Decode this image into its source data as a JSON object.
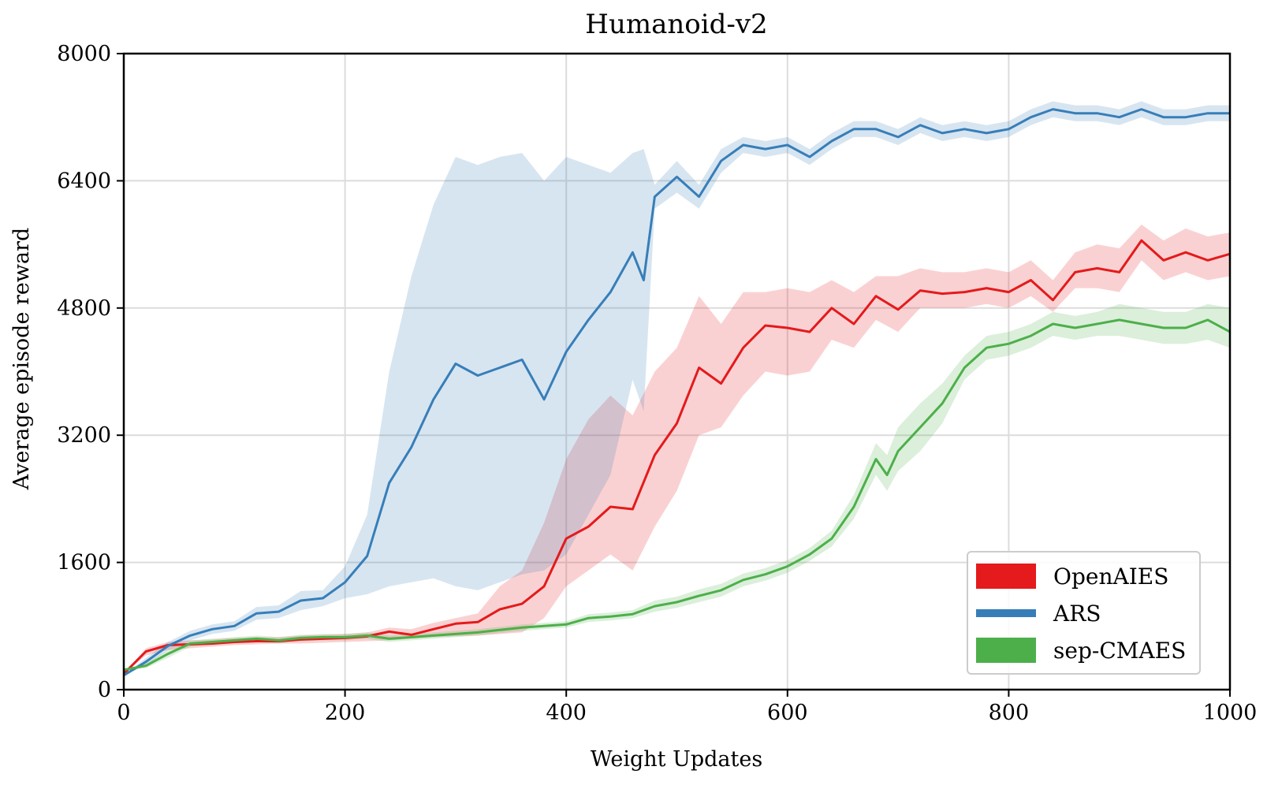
{
  "chart_data": {
    "type": "line",
    "title": "Humanoid-v2",
    "xlabel": "Weight Updates",
    "ylabel": "Average episode reward",
    "xlim": [
      0,
      1000
    ],
    "ylim": [
      0,
      8000
    ],
    "xticks": [
      0,
      200,
      400,
      600,
      800,
      1000
    ],
    "yticks": [
      0,
      1600,
      3200,
      4800,
      6400,
      8000
    ],
    "grid": true,
    "legend_position": "lower-right",
    "series": [
      {
        "name": "OpenAIES",
        "color": "#e41a1c",
        "x": [
          0,
          20,
          40,
          60,
          80,
          100,
          120,
          140,
          160,
          180,
          200,
          220,
          240,
          260,
          280,
          300,
          320,
          340,
          360,
          380,
          400,
          420,
          440,
          460,
          480,
          500,
          520,
          540,
          560,
          580,
          600,
          620,
          640,
          660,
          680,
          700,
          720,
          740,
          760,
          780,
          800,
          820,
          840,
          860,
          880,
          900,
          920,
          940,
          960,
          980,
          1000
        ],
        "y": [
          200,
          480,
          560,
          570,
          580,
          600,
          610,
          610,
          630,
          640,
          650,
          670,
          730,
          690,
          760,
          830,
          850,
          1010,
          1080,
          1300,
          1900,
          2050,
          2300,
          2270,
          2950,
          3350,
          4050,
          3850,
          4300,
          4580,
          4550,
          4500,
          4800,
          4600,
          4950,
          4780,
          5020,
          4980,
          5000,
          5050,
          5000,
          5150,
          4900,
          5250,
          5300,
          5250,
          5650,
          5400,
          5500,
          5400,
          5480
        ],
        "lower": [
          200,
          430,
          500,
          520,
          540,
          560,
          570,
          580,
          580,
          590,
          600,
          610,
          620,
          640,
          660,
          670,
          680,
          700,
          720,
          900,
          1300,
          1500,
          1700,
          1500,
          2050,
          2500,
          3200,
          3300,
          3700,
          4000,
          3950,
          4000,
          4400,
          4300,
          4650,
          4500,
          4800,
          4800,
          4800,
          4850,
          4800,
          4950,
          4750,
          5050,
          5050,
          5000,
          5400,
          5150,
          5250,
          5150,
          5200
        ],
        "upper": [
          200,
          520,
          600,
          620,
          630,
          650,
          660,
          660,
          680,
          690,
          700,
          720,
          780,
          760,
          840,
          900,
          960,
          1300,
          1500,
          2100,
          2900,
          3400,
          3700,
          3450,
          4000,
          4300,
          4950,
          4600,
          5000,
          5000,
          5050,
          5000,
          5150,
          5000,
          5200,
          5200,
          5300,
          5250,
          5250,
          5300,
          5250,
          5400,
          5150,
          5500,
          5600,
          5550,
          5850,
          5650,
          5800,
          5700,
          5750
        ]
      },
      {
        "name": "ARS",
        "color": "#377eb8",
        "x": [
          0,
          20,
          40,
          60,
          80,
          100,
          120,
          140,
          160,
          180,
          200,
          220,
          240,
          260,
          280,
          300,
          320,
          340,
          360,
          380,
          400,
          420,
          440,
          460,
          470,
          480,
          500,
          520,
          540,
          560,
          580,
          600,
          620,
          640,
          660,
          680,
          700,
          720,
          740,
          760,
          780,
          800,
          820,
          840,
          860,
          880,
          900,
          920,
          940,
          960,
          980,
          1000
        ],
        "y": [
          180,
          350,
          550,
          680,
          760,
          800,
          960,
          980,
          1120,
          1150,
          1350,
          1680,
          2600,
          3050,
          3650,
          4100,
          3950,
          4050,
          4150,
          3650,
          4250,
          4650,
          5000,
          5500,
          5150,
          6200,
          6450,
          6200,
          6650,
          6850,
          6800,
          6850,
          6700,
          6900,
          7050,
          7050,
          6950,
          7100,
          7000,
          7050,
          7000,
          7050,
          7200,
          7300,
          7250,
          7250,
          7200,
          7300,
          7200,
          7200,
          7250,
          7250
        ],
        "lower": [
          180,
          300,
          500,
          620,
          700,
          740,
          880,
          900,
          1000,
          1050,
          1150,
          1200,
          1300,
          1350,
          1400,
          1300,
          1250,
          1350,
          1450,
          1500,
          1700,
          2200,
          2700,
          3900,
          3500,
          6050,
          6250,
          6050,
          6500,
          6750,
          6700,
          6750,
          6600,
          6800,
          6950,
          6950,
          6850,
          7000,
          6900,
          6950,
          6900,
          6950,
          7100,
          7200,
          7150,
          7150,
          7100,
          7200,
          7100,
          7100,
          7150,
          7150
        ],
        "upper": [
          180,
          400,
          600,
          740,
          820,
          860,
          1040,
          1060,
          1240,
          1250,
          1550,
          2200,
          4000,
          5200,
          6100,
          6700,
          6600,
          6700,
          6750,
          6400,
          6700,
          6600,
          6500,
          6750,
          6800,
          6350,
          6650,
          6350,
          6800,
          6950,
          6900,
          6950,
          6800,
          7000,
          7150,
          7150,
          7050,
          7200,
          7100,
          7150,
          7100,
          7150,
          7300,
          7400,
          7350,
          7350,
          7300,
          7400,
          7300,
          7300,
          7350,
          7350
        ]
      },
      {
        "name": "sep-CMAES",
        "color": "#4daf4a",
        "x": [
          0,
          20,
          40,
          60,
          80,
          100,
          120,
          140,
          160,
          180,
          200,
          220,
          240,
          260,
          280,
          300,
          320,
          340,
          360,
          380,
          400,
          420,
          440,
          460,
          480,
          500,
          520,
          540,
          560,
          580,
          600,
          620,
          640,
          660,
          680,
          690,
          700,
          720,
          740,
          760,
          780,
          800,
          820,
          840,
          860,
          880,
          900,
          920,
          940,
          960,
          980,
          1000
        ],
        "y": [
          250,
          300,
          450,
          580,
          600,
          620,
          640,
          620,
          650,
          660,
          660,
          680,
          640,
          660,
          680,
          700,
          720,
          750,
          780,
          800,
          820,
          900,
          920,
          950,
          1050,
          1100,
          1180,
          1250,
          1380,
          1450,
          1550,
          1700,
          1900,
          2300,
          2900,
          2700,
          3000,
          3300,
          3600,
          4050,
          4300,
          4350,
          4450,
          4600,
          4550,
          4600,
          4650,
          4600,
          4550,
          4550,
          4650,
          4500
        ],
        "lower": [
          250,
          270,
          400,
          540,
          560,
          580,
          600,
          580,
          610,
          620,
          620,
          640,
          600,
          620,
          640,
          660,
          680,
          710,
          740,
          760,
          780,
          850,
          870,
          900,
          980,
          1030,
          1100,
          1170,
          1300,
          1370,
          1470,
          1620,
          1800,
          2150,
          2700,
          2500,
          2750,
          3000,
          3350,
          3900,
          4150,
          4200,
          4300,
          4450,
          4400,
          4450,
          4450,
          4400,
          4350,
          4350,
          4400,
          4300
        ],
        "upper": [
          250,
          330,
          500,
          620,
          640,
          660,
          680,
          660,
          690,
          700,
          700,
          720,
          680,
          700,
          720,
          740,
          760,
          790,
          820,
          840,
          860,
          950,
          970,
          1000,
          1120,
          1170,
          1260,
          1330,
          1460,
          1530,
          1630,
          1780,
          2000,
          2450,
          3100,
          2950,
          3300,
          3600,
          3850,
          4200,
          4450,
          4500,
          4600,
          4750,
          4700,
          4750,
          4850,
          4800,
          4750,
          4750,
          4850,
          4800
        ]
      }
    ]
  }
}
